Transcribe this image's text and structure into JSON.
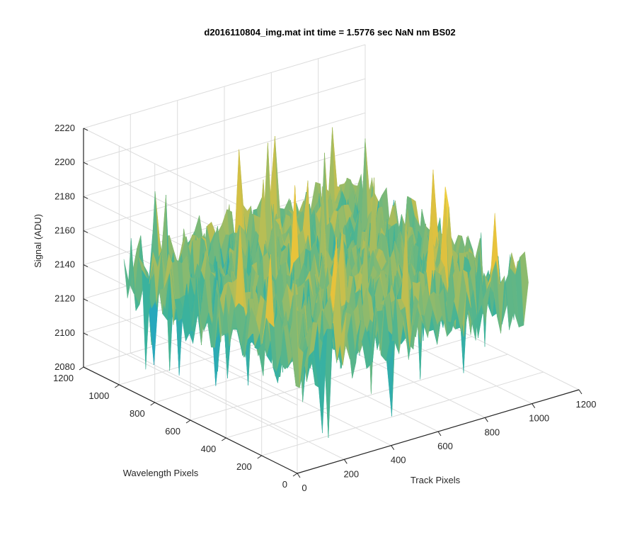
{
  "chart_data": {
    "type": "surface",
    "title": "d2016110804_img.mat int time = 1.5776 sec  NaN nm BS02",
    "xlabel": "Track Pixels",
    "ylabel": "Wavelength Pixels",
    "zlabel": "Signal (ADU)",
    "xlim": [
      0,
      1200
    ],
    "ylim": [
      0,
      1200
    ],
    "zlim": [
      2080,
      2220
    ],
    "xticks": [
      "0",
      "200",
      "400",
      "600",
      "800",
      "1000",
      "1200"
    ],
    "yticks": [
      "0",
      "200",
      "400",
      "600",
      "800",
      "1000",
      "1200"
    ],
    "zticks": [
      "2080",
      "2100",
      "2120",
      "2140",
      "2160",
      "2180",
      "2200",
      "2220"
    ],
    "grid": true,
    "colormap": "parula",
    "colors": {
      "low": "#1aa1d3",
      "mid": "#3db39a",
      "high": "#e8c23a",
      "top": "#f9e64b"
    },
    "signal_summary": {
      "typical_range": [
        2120,
        2170
      ],
      "min_spikes": 2085,
      "max_spikes": 2205
    }
  }
}
